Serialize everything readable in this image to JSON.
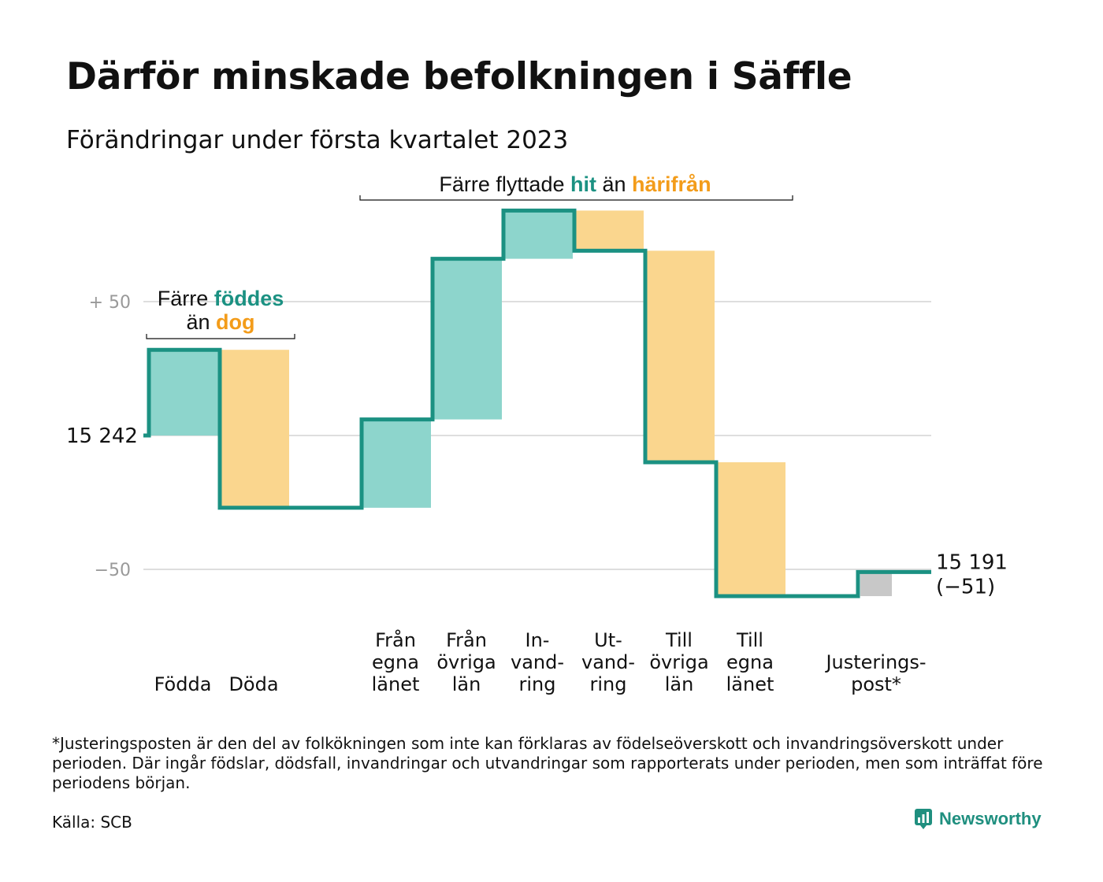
{
  "header": {
    "title": "Därför minskade befolkningen i Säffle",
    "subtitle": "Förändringar under första kvartalet 2023"
  },
  "colors": {
    "inflow": "#8dd5cc",
    "outflow": "#fad68e",
    "adjustment": "#c8c8c8",
    "line": "#1b9182",
    "teal_text": "#1b9182",
    "orange_text": "#f39c1a",
    "grid": "#dedede",
    "tick_muted": "#999999"
  },
  "annotations": {
    "births_deaths": {
      "line1_prefix": "Färre",
      "line1_highlight": "föddes",
      "line2_prefix": "än",
      "line2_highlight": "dog"
    },
    "migration": {
      "prefix": "Färre flyttade",
      "highlight1": "hit",
      "middle": "än",
      "highlight2": "härifrån"
    }
  },
  "chart_data": {
    "type": "waterfall",
    "start_value": 15242,
    "start_label": "15 242",
    "end_value": 15191,
    "end_label": "15 191",
    "end_change_label": "(−51)",
    "y_ticks": [
      {
        "value": 50,
        "label": "+ 50"
      },
      {
        "value": 0,
        "label": ""
      },
      {
        "value": -50,
        "label": "−50"
      }
    ],
    "ylim": [
      -64,
      88
    ],
    "steps": [
      {
        "label": "Födda",
        "lines": [
          "Födda"
        ],
        "change": 32,
        "kind": "inflow",
        "gap_before": false
      },
      {
        "label": "Döda",
        "lines": [
          "Döda"
        ],
        "change": -59,
        "kind": "outflow",
        "gap_before": false
      },
      {
        "label": "Från egna länet",
        "lines": [
          "Från",
          "egna",
          "länet"
        ],
        "change": 33,
        "kind": "inflow",
        "gap_before": true
      },
      {
        "label": "Från övriga län",
        "lines": [
          "Från",
          "övriga",
          "län"
        ],
        "change": 60,
        "kind": "inflow",
        "gap_before": false
      },
      {
        "label": "Invandring",
        "lines": [
          "In-",
          "vand-",
          "ring"
        ],
        "change": 18,
        "kind": "inflow",
        "gap_before": false
      },
      {
        "label": "Utvandring",
        "lines": [
          "Ut-",
          "vand-",
          "ring"
        ],
        "change": -15,
        "kind": "outflow",
        "gap_before": false
      },
      {
        "label": "Till övriga län",
        "lines": [
          "Till",
          "övriga",
          "län"
        ],
        "change": -79,
        "kind": "outflow",
        "gap_before": false
      },
      {
        "label": "Till egna länet",
        "lines": [
          "Till",
          "egna",
          "länet"
        ],
        "change": -50,
        "kind": "outflow",
        "gap_before": false
      },
      {
        "label": "Justeringspost*",
        "lines": [
          "Justerings-",
          "post*"
        ],
        "change": 9,
        "kind": "adjustment",
        "gap_before": true
      }
    ]
  },
  "footer": {
    "footnote": "*Justeringsposten är den del av folkökningen som inte kan förklaras av födelseöverskott och invandringsöverskott under perioden. Där ingår födslar, dödsfall, invandringar och utvandringar som rapporterats under perioden, men som inträffat före periodens början.",
    "source": "Källa: SCB",
    "brand": "Newsworthy"
  }
}
